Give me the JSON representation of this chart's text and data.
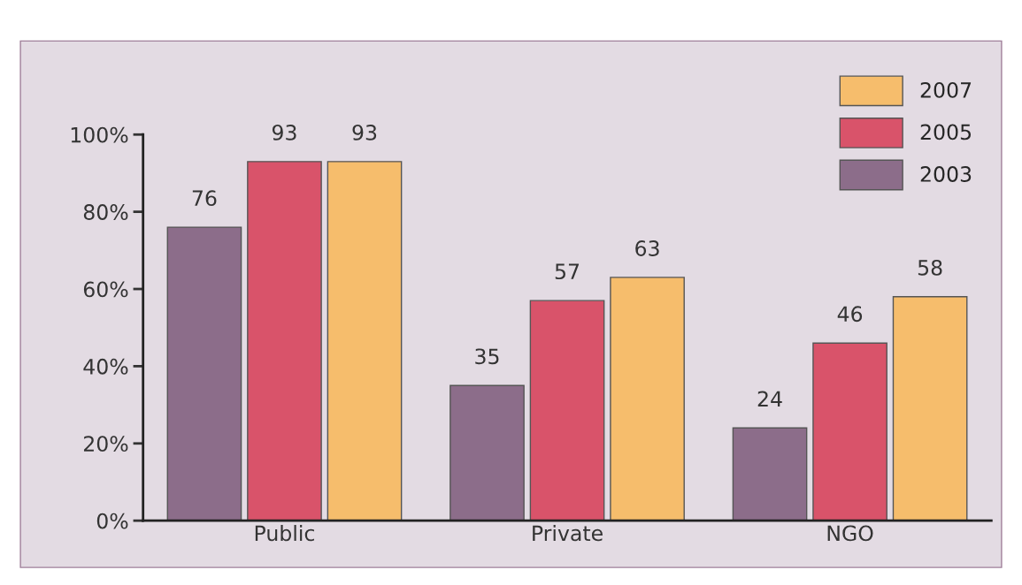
{
  "chart_data": {
    "type": "bar",
    "categories": [
      "Public",
      "Private",
      "NGO"
    ],
    "series": [
      {
        "name": "2003",
        "color": "#8c6d8a",
        "values": [
          76,
          35,
          24
        ]
      },
      {
        "name": "2005",
        "color": "#d9536a",
        "values": [
          93,
          57,
          46
        ]
      },
      {
        "name": "2007",
        "color": "#f6bd6c",
        "values": [
          93,
          63,
          58
        ]
      }
    ],
    "ylim": [
      0,
      100
    ],
    "yticks": [
      {
        "value": 0,
        "label": "0%"
      },
      {
        "value": 20,
        "label": "20%"
      },
      {
        "value": 40,
        "label": "40%"
      },
      {
        "value": 60,
        "label": "60%"
      },
      {
        "value": 80,
        "label": "80%"
      },
      {
        "value": 100,
        "label": "100%"
      }
    ],
    "data_labels": true,
    "grid": false,
    "legend": "top right"
  }
}
